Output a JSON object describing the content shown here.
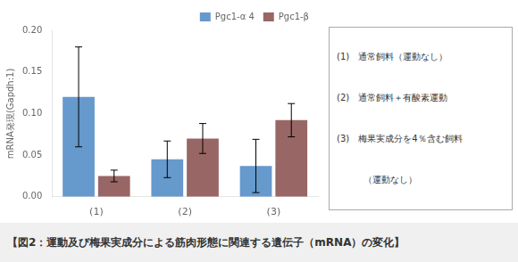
{
  "chart_data": {
    "type": "bar",
    "title": "【図2：運動及び梅果実成分による筋肉形態に関連する遺伝子（mRNA）の変化】",
    "ylabel": "mRNA発現(Gapdh:1)",
    "categories": [
      "(1)",
      "(2)",
      "(3)"
    ],
    "series": [
      {
        "name": "Pgc1-α 4",
        "color": "#6699CC",
        "values": [
          0.12,
          0.045,
          0.037
        ],
        "errors": [
          0.06,
          0.022,
          0.032
        ]
      },
      {
        "name": "Pgc1-β",
        "color": "#996666",
        "values": [
          0.025,
          0.07,
          0.092
        ],
        "errors": [
          0.007,
          0.018,
          0.02
        ]
      }
    ],
    "ylim": [
      0.0,
      0.2
    ],
    "yticks": [
      {
        "value": 0.0,
        "label": "0.00"
      },
      0.05,
      {
        "value": 0.1,
        "label": "0.10"
      },
      0.15,
      {
        "value": 0.2,
        "label": "0.20"
      }
    ],
    "grid": false,
    "legend": "upper right",
    "annotations": [
      "(1)　通常飼料（運動なし）",
      "(2)　通常飼料＋有酸素運動",
      "(3)　梅果実成分を4％含む飼料",
      "　　　（運動なし）"
    ]
  }
}
